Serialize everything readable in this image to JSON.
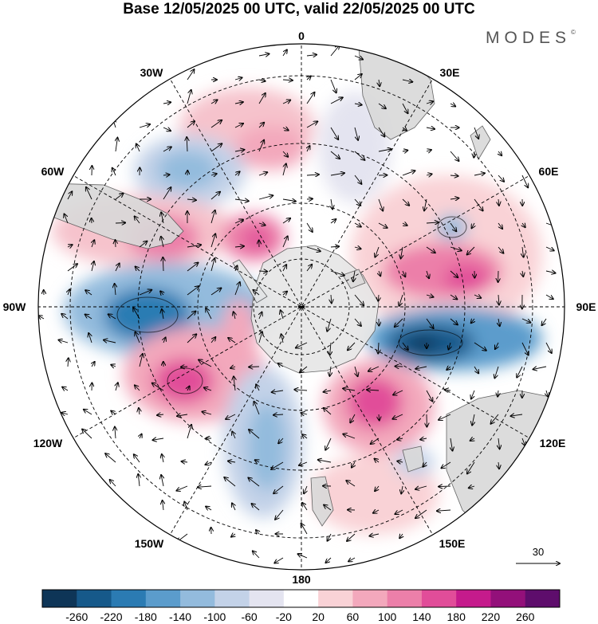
{
  "title": "Base 12/05/2025 00 UTC, valid 22/05/2025 00 UTC",
  "brand": "MODES",
  "brand_mark": "©",
  "map": {
    "projection": "south-polar-stereographic",
    "longitude_labels": [
      "0",
      "30E",
      "60E",
      "90E",
      "120E",
      "150E",
      "180",
      "150W",
      "120W",
      "90W",
      "60W",
      "30W"
    ],
    "land_color": "#d9d9d9",
    "anomaly_field": [
      {
        "sign": "positive",
        "region": "south-atlantic-south-of-africa",
        "peak": "60-100"
      },
      {
        "sign": "negative",
        "region": "south-atlantic-west",
        "peak": "-100 to -140"
      },
      {
        "sign": "positive",
        "region": "south-america-argentina",
        "peak": "140-180"
      },
      {
        "sign": "positive",
        "region": "weddell-sea",
        "peak": "140-180"
      },
      {
        "sign": "negative",
        "region": "southeast-pacific-west-of-chile",
        "peak": "-180 to -220"
      },
      {
        "sign": "positive",
        "region": "south-pacific-120W",
        "peak": "180-220"
      },
      {
        "sign": "negative",
        "region": "ross-sea-150W",
        "peak": "-100 to -140"
      },
      {
        "sign": "positive",
        "region": "south-of-australia-110E",
        "peak": "140-180"
      },
      {
        "sign": "negative",
        "region": "southern-indian-ocean-90E",
        "peak": "-220 to -260"
      },
      {
        "sign": "positive",
        "region": "southern-indian-ocean-60E",
        "peak": "140-180"
      },
      {
        "sign": "negative",
        "region": "indian-ocean-50E-small",
        "peak": "-60 to -100"
      }
    ]
  },
  "reference_vector": {
    "value": "30",
    "direction": "east"
  },
  "colorbar": {
    "colors": [
      "#0e3557",
      "#16598a",
      "#2b7bb3",
      "#5b9ccc",
      "#93bbdd",
      "#c3d2e8",
      "#e4e4f0",
      "#ffffff",
      "#f9d2d6",
      "#f3a8bc",
      "#ec7fa9",
      "#e14d99",
      "#c51b8c",
      "#93107a",
      "#5e0d6c"
    ],
    "ticks": [
      "-260",
      "-220",
      "-180",
      "-140",
      "-100",
      "-60",
      "-20",
      "20",
      "60",
      "100",
      "140",
      "180",
      "220",
      "260"
    ]
  }
}
